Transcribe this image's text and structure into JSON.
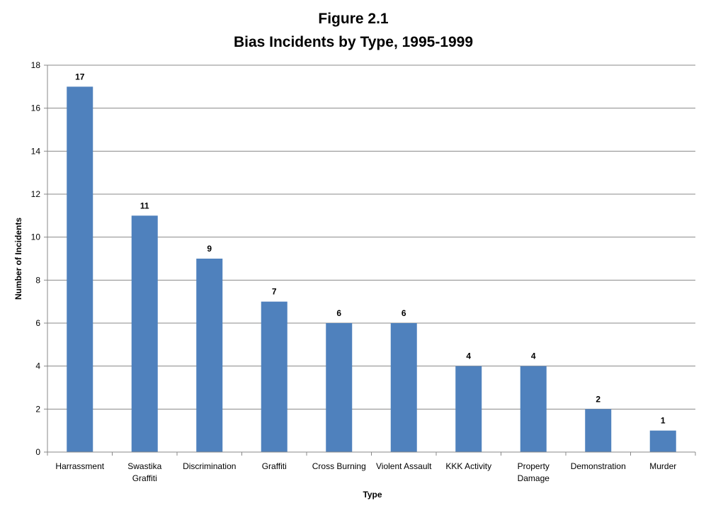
{
  "chart_data": {
    "type": "bar",
    "title": "Figure 2.1",
    "subtitle": "Bias Incidents by Type, 1995-1999",
    "xlabel": "Type",
    "ylabel": "Number of Incidents",
    "ylim": [
      0,
      18
    ],
    "ytick_step": 2,
    "grid": true,
    "legend": "none",
    "bar_color": "#4f81bd",
    "grid_color": "#888888",
    "categories": [
      [
        "Harrassment"
      ],
      [
        "Swastika",
        "Graffiti"
      ],
      [
        "Discrimination"
      ],
      [
        "Graffiti"
      ],
      [
        "Cross Burning"
      ],
      [
        "Violent Assault"
      ],
      [
        "KKK Activity"
      ],
      [
        "Property",
        "Damage"
      ],
      [
        "Demonstration"
      ],
      [
        "Murder"
      ]
    ],
    "values": [
      17,
      11,
      9,
      7,
      6,
      6,
      4,
      4,
      2,
      1
    ]
  }
}
